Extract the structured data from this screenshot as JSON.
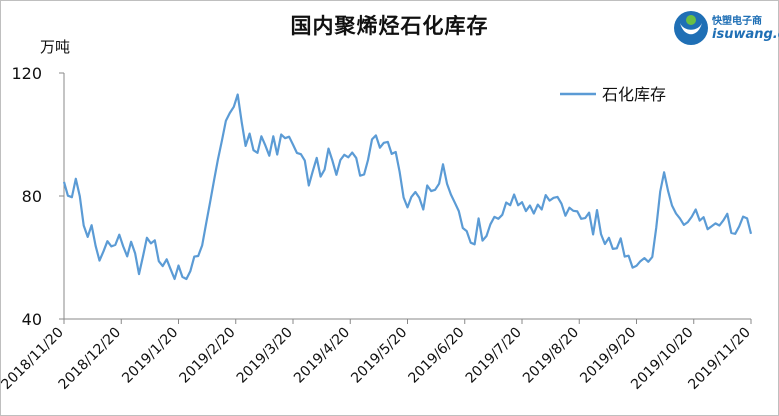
{
  "chart_data": {
    "type": "line",
    "title": "国内聚烯烃石化库存",
    "ylabel": "万吨",
    "xlabel": "",
    "ylim": [
      40,
      120
    ],
    "yticks": [
      "40",
      "80",
      "120"
    ],
    "x_ticks": [
      "2018/11/20",
      "2018/12/20",
      "2019/1/20",
      "2019/2/20",
      "2019/3/20",
      "2019/4/20",
      "2019/5/20",
      "2019/6/20",
      "2019/7/20",
      "2019/8/20",
      "2019/9/20",
      "2019/10/20",
      "2019/11/20"
    ],
    "grid": false,
    "legend_position": "top-right",
    "series": [
      {
        "name": "石化库存",
        "color": "#5b9bd5",
        "values": [
          84.6,
          80.1,
          79.6,
          85.6,
          79.9,
          70.4,
          66.7,
          70.5,
          63.8,
          59.0,
          62.0,
          65.3,
          63.6,
          64.1,
          67.4,
          63.6,
          60.4,
          65.1,
          61.4,
          54.6,
          60.4,
          66.4,
          64.6,
          65.6,
          58.8,
          57.2,
          59.4,
          56.2,
          53.0,
          57.4,
          53.7,
          53.0,
          55.5,
          60.3,
          60.5,
          64.0,
          71.0,
          78.0,
          85.0,
          92.0,
          98.0,
          104.5,
          107.0,
          109.0,
          113.0,
          104.0,
          96.3,
          100.3,
          94.9,
          94.0,
          99.4,
          96.4,
          93.1,
          99.4,
          93.5,
          100.0,
          98.8,
          99.3,
          96.7,
          94.0,
          93.6,
          91.5,
          83.4,
          88.0,
          92.4,
          86.3,
          88.6,
          95.4,
          91.4,
          86.9,
          91.7,
          93.4,
          92.6,
          94.1,
          92.4,
          86.6,
          87.0,
          91.7,
          98.4,
          99.7,
          95.7,
          97.3,
          97.6,
          93.7,
          94.3,
          87.9,
          79.5,
          76.3,
          79.7,
          81.3,
          79.4,
          75.6,
          83.4,
          81.6,
          82.0,
          84.0,
          90.3,
          84.0,
          80.5,
          77.8,
          75.1,
          69.6,
          68.6,
          64.8,
          64.3,
          72.7,
          65.5,
          67.0,
          70.8,
          73.2,
          72.6,
          73.9,
          77.9,
          77.0,
          80.5,
          77.0,
          78.0,
          75.1,
          76.9,
          74.3,
          77.2,
          75.6,
          80.3,
          78.5,
          79.4,
          79.7,
          77.5,
          73.6,
          76.2,
          75.2,
          75.0,
          72.6,
          72.8,
          74.6,
          67.5,
          75.4,
          67.6,
          64.4,
          66.4,
          62.8,
          63.0,
          66.2,
          60.3,
          60.6,
          56.7,
          57.3,
          58.8,
          59.8,
          58.6,
          60.2,
          69.6,
          81.4,
          87.7,
          81.6,
          76.9,
          74.3,
          72.7,
          70.6,
          71.5,
          73.3,
          75.6,
          72.0,
          73.1,
          69.2,
          70.1,
          71.1,
          70.4,
          72.1,
          74.2,
          68.0,
          67.7,
          70.1,
          73.3,
          72.7,
          67.7
        ]
      }
    ]
  }
}
